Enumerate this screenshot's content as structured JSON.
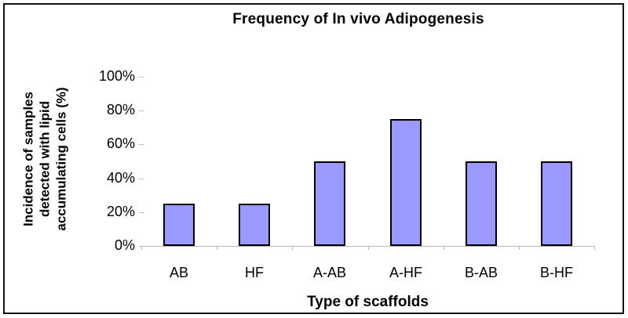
{
  "window": {
    "background": "#ffffff",
    "border_color": "#141414"
  },
  "chart_data": {
    "type": "bar",
    "title": "Frequency of In vivo Adipogenesis",
    "categories": [
      "AB",
      "HF",
      "A-AB",
      "A-HF",
      "B-AB",
      "B-HF"
    ],
    "values": [
      25,
      25,
      50,
      75,
      50,
      50
    ],
    "unit": "%",
    "xlabel": "Type of scaffolds",
    "ylabel": "Incidence of samples detected with lipid accumulating cells (%)",
    "ylabel_lines": [
      "Incidence of samples",
      "detected with lipid",
      "accumulating cells (%)"
    ],
    "y_ticks": [
      "100%",
      "80%",
      "60%",
      "40%",
      "20%",
      "0%"
    ],
    "ylim": [
      0,
      100
    ],
    "y_tick_step": 20,
    "grid": false,
    "legend": "none",
    "bar_color": "#9999FF",
    "bar_border_color": "#000000",
    "axis_color": "#b6b6b6"
  }
}
